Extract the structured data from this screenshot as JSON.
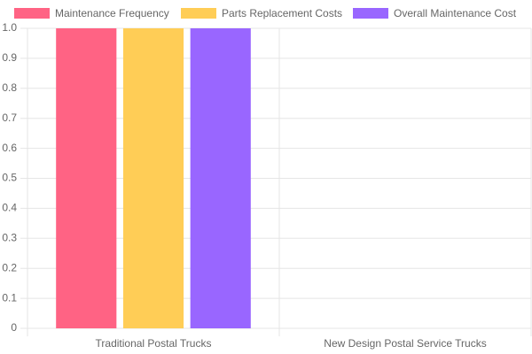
{
  "chart_data": {
    "type": "bar",
    "categories": [
      "Traditional Postal Trucks",
      "New Design Postal Service Trucks"
    ],
    "series": [
      {
        "name": "Maintenance Frequency",
        "color": "#ff6384",
        "values": [
          1,
          0
        ]
      },
      {
        "name": "Parts Replacement Costs",
        "color": "#ffcd56",
        "values": [
          1,
          0
        ]
      },
      {
        "name": "Overall Maintenance Cost",
        "color": "#9966ff",
        "values": [
          1,
          0
        ]
      }
    ],
    "ylim": [
      0,
      1
    ],
    "yticks": [
      0,
      0.1,
      0.2,
      0.3,
      0.4,
      0.5,
      0.6,
      0.7,
      0.8,
      0.9,
      {
        "value": 1,
        "label": "1.0"
      }
    ],
    "grid": true,
    "legend": "top"
  }
}
